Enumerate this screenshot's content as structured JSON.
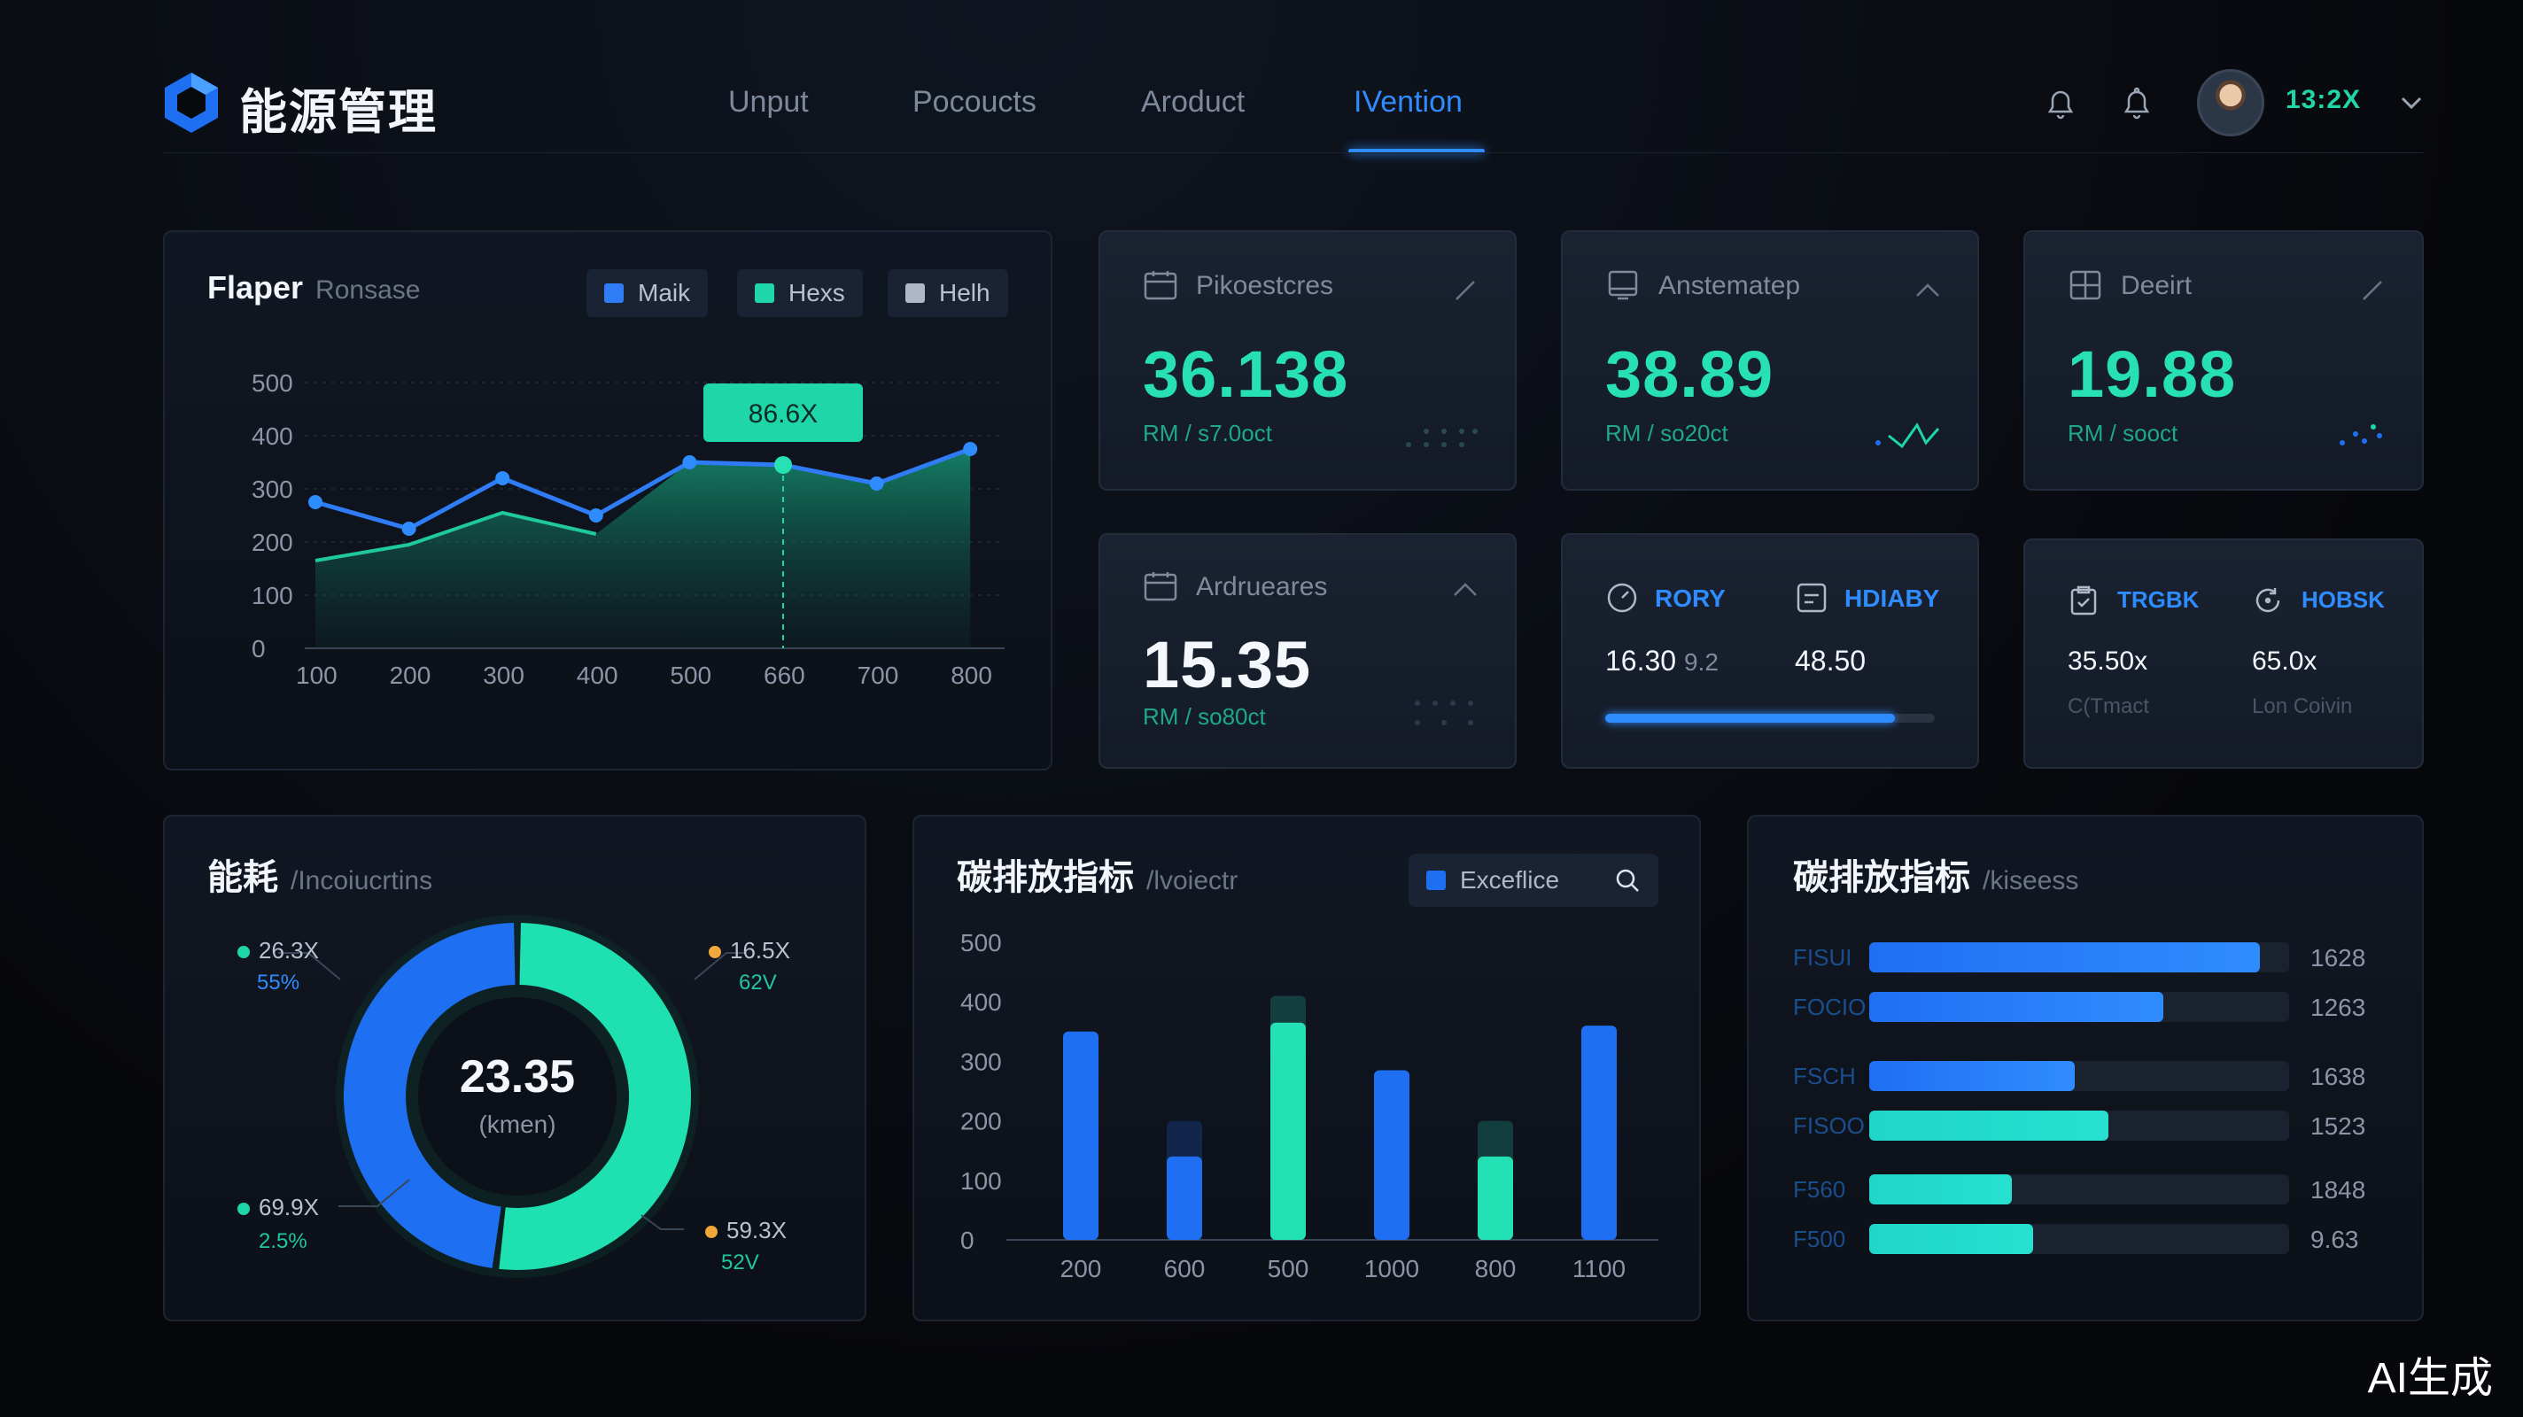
{
  "header": {
    "brand": "能源管理",
    "nav": [
      "Unput",
      "Pocoucts",
      "Aroduct",
      "IVention"
    ],
    "active_tab": "IVention",
    "user_value": "13:2X"
  },
  "line_panel": {
    "title": "Flaper",
    "subtitle": "Ronsase",
    "legend": [
      "Maik",
      "Hexs",
      "Helh"
    ],
    "tooltip": "86.6X"
  },
  "kpis": [
    {
      "label": "Pikoestcres",
      "value": "36.138",
      "unit": "RM / s7.0oct"
    },
    {
      "label": "Anstematep",
      "value": "38.89",
      "unit": "RM / so20ct"
    },
    {
      "label": "Deeirt",
      "value": "19.88",
      "unit": "RM / sooct"
    },
    {
      "label": "Ardrueares",
      "value": "15.35",
      "unit": "RM / so80ct"
    }
  ],
  "mini_card_1": {
    "items": [
      {
        "label": "RORY",
        "value": "16.30",
        "extra": "9.2"
      },
      {
        "label": "HDIABY",
        "value": "48.50"
      }
    ],
    "progress": 0.88
  },
  "mini_card_2": {
    "items": [
      {
        "label": "TRGBK",
        "value": "35.50x",
        "sub": "C(Tmact"
      },
      {
        "label": "HOBSK",
        "value": "65.0x",
        "sub": "Lon Coivin"
      }
    ]
  },
  "donut_panel": {
    "title": "能耗",
    "subtitle": "/Incoiucrtins",
    "center_value": "23.35",
    "center_unit": "(kmen)",
    "labels": [
      {
        "value": "26.3X",
        "sub": "55%"
      },
      {
        "value": "16.5X",
        "sub": "62V"
      },
      {
        "value": "69.9X",
        "sub": "2.5%"
      },
      {
        "value": "59.3X",
        "sub": "52V"
      }
    ]
  },
  "bar_panel": {
    "title": "碳排放指标",
    "subtitle": "/lvoiectr",
    "search_label": "Exceflice"
  },
  "hbar_panel": {
    "title": "碳排放指标",
    "subtitle": "/kiseess",
    "rows": [
      {
        "label": "FISUI",
        "value": "1628",
        "fill": 0.93
      },
      {
        "label": "FOCIO",
        "value": "1263",
        "fill": 0.7
      },
      {
        "label": "FSCH",
        "value": "1638",
        "fill": 0.49
      },
      {
        "label": "FISOO",
        "value": "1523",
        "fill": 0.57
      },
      {
        "label": "F560",
        "value": "1848",
        "fill": 0.34
      },
      {
        "label": "F500",
        "value": "9.63",
        "fill": 0.39
      }
    ]
  },
  "watermark": "AI生成",
  "chart_data": [
    {
      "type": "line",
      "x": [
        100,
        200,
        300,
        400,
        500,
        660,
        700,
        800
      ],
      "xlim_labels": [
        "100",
        "200",
        "300",
        "400",
        "500",
        "660",
        "700",
        "800"
      ],
      "ylim": [
        0,
        500
      ],
      "yticks": [
        0,
        100,
        200,
        300,
        400,
        500
      ],
      "series": [
        {
          "values": [
            275,
            225,
            320,
            250,
            350,
            345,
            310,
            375
          ],
          "color": "#2f7cf6"
        },
        {
          "values": [
            165,
            195,
            255,
            215,
            null,
            null,
            null,
            null
          ],
          "color": "#1fc99d"
        }
      ],
      "area_values": [
        165,
        195,
        255,
        215,
        350,
        345,
        310,
        375
      ],
      "marker_x": 660
    },
    {
      "type": "bar",
      "categories": [
        "200",
        "600",
        "500",
        "1000",
        "800",
        "1100"
      ],
      "values": [
        350,
        140,
        365,
        285,
        140,
        360
      ],
      "background_values": [
        null,
        200,
        410,
        null,
        200,
        null
      ],
      "colors": [
        "#1f6ff2",
        "#1f6ff2",
        "#24e0b5",
        "#1f6ff2",
        "#24e0b5",
        "#1f6ff2"
      ],
      "ylim": [
        0,
        500
      ],
      "yticks": [
        0,
        100,
        200,
        300,
        400,
        500
      ]
    },
    {
      "type": "pie",
      "values": [
        52,
        48
      ],
      "colors": [
        "#1ee0b0",
        "#1f6ff2"
      ]
    }
  ]
}
